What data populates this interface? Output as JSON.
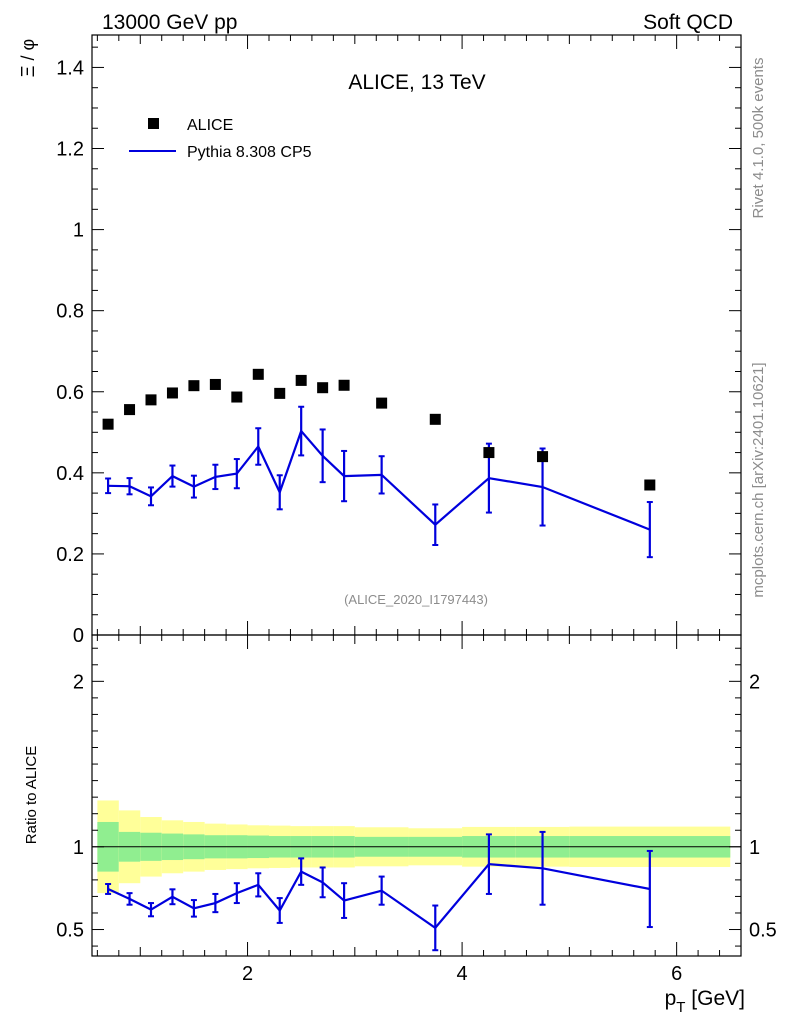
{
  "header": {
    "left": "13000 GeV pp",
    "right": "Soft QCD"
  },
  "side_text": {
    "rivet": "Rivet 4.1.0,  500k events",
    "mcplots": "mcplots.cern.ch [arXiv:2401.10621]"
  },
  "chart_data": [
    {
      "type": "scatter",
      "panel": "main",
      "title": "ALICE, 13 TeV",
      "analysis_id": "(ALICE_2020_I1797443)",
      "ylabel": "Ξ / φ",
      "xlabel": "",
      "xlim": [
        0.55,
        6.6
      ],
      "ylim": [
        0,
        1.48
      ],
      "yticks": [
        0,
        0.2,
        0.4,
        0.6,
        0.8,
        1,
        1.2,
        1.4
      ],
      "ytick_labels": [
        "0",
        "0.2",
        "0.4",
        "0.6",
        "0.8",
        "1",
        "1.2",
        "1.4"
      ],
      "legend": {
        "placement": "top-left",
        "entries": [
          "ALICE",
          "Pythia 8.308 CP5"
        ]
      },
      "series": [
        {
          "name": "ALICE",
          "style": "markers",
          "color": "#000000",
          "x": [
            0.7,
            0.9,
            1.1,
            1.3,
            1.5,
            1.7,
            1.9,
            2.1,
            2.3,
            2.5,
            2.7,
            2.9,
            3.25,
            3.75,
            4.25,
            4.75,
            5.75
          ],
          "y": [
            0.52,
            0.556,
            0.58,
            0.597,
            0.615,
            0.618,
            0.587,
            0.643,
            0.596,
            0.628,
            0.61,
            0.616,
            0.572,
            0.532,
            0.45,
            0.44,
            0.37
          ]
        },
        {
          "name": "Pythia 8.308 CP5",
          "style": "line",
          "color": "#0000dd",
          "x": [
            0.7,
            0.9,
            1.1,
            1.3,
            1.5,
            1.7,
            1.9,
            2.1,
            2.3,
            2.5,
            2.7,
            2.9,
            3.25,
            3.75,
            4.25,
            4.75,
            5.75
          ],
          "y": [
            0.368,
            0.367,
            0.342,
            0.392,
            0.366,
            0.39,
            0.398,
            0.465,
            0.352,
            0.503,
            0.442,
            0.392,
            0.395,
            0.272,
            0.387,
            0.365,
            0.26
          ],
          "err": [
            0.018,
            0.02,
            0.022,
            0.026,
            0.027,
            0.03,
            0.036,
            0.045,
            0.042,
            0.06,
            0.065,
            0.062,
            0.046,
            0.05,
            0.085,
            0.095,
            0.068
          ]
        }
      ]
    },
    {
      "type": "line",
      "panel": "ratio",
      "ylabel": "Ratio to ALICE",
      "xlabel": "p_T [GeV]",
      "xlabel_main": "p",
      "xlabel_sub": "T",
      "xlabel_unit": " [GeV]",
      "xlim": [
        0.55,
        6.6
      ],
      "ylim": [
        0.34,
        2.28
      ],
      "xticks": [
        2,
        4,
        6
      ],
      "xtick_labels": [
        "2",
        "4",
        "6"
      ],
      "yticks": [
        0.5,
        1,
        2
      ],
      "ytick_labels": [
        "0.5",
        "1",
        "2"
      ],
      "reference_line": 1,
      "bin_edges": [
        0.6,
        0.8,
        1.0,
        1.2,
        1.4,
        1.6,
        1.8,
        2.0,
        2.2,
        2.4,
        2.6,
        2.8,
        3.0,
        3.5,
        4.0,
        4.5,
        5.0,
        6.5
      ],
      "band_inner": [
        0.15,
        0.09,
        0.085,
        0.08,
        0.075,
        0.07,
        0.07,
        0.068,
        0.065,
        0.065,
        0.065,
        0.065,
        0.06,
        0.06,
        0.065,
        0.065,
        0.065
      ],
      "band_outer": [
        0.28,
        0.22,
        0.18,
        0.16,
        0.15,
        0.14,
        0.135,
        0.13,
        0.128,
        0.125,
        0.125,
        0.125,
        0.118,
        0.112,
        0.12,
        0.12,
        0.122
      ],
      "band_colors": {
        "inner": "#90ee90",
        "outer": "#ffff99"
      },
      "series": [
        {
          "name": "Pythia 8.308 CP5 / ALICE",
          "color": "#0000dd",
          "x": [
            0.7,
            0.9,
            1.1,
            1.3,
            1.5,
            1.7,
            1.9,
            2.1,
            2.3,
            2.5,
            2.7,
            2.9,
            3.25,
            3.75,
            4.25,
            4.75,
            5.75
          ],
          "y": [
            0.745,
            0.685,
            0.62,
            0.698,
            0.628,
            0.66,
            0.72,
            0.77,
            0.615,
            0.85,
            0.785,
            0.675,
            0.735,
            0.51,
            0.895,
            0.87,
            0.745
          ],
          "err": [
            0.03,
            0.035,
            0.04,
            0.045,
            0.05,
            0.055,
            0.06,
            0.07,
            0.075,
            0.08,
            0.09,
            0.105,
            0.085,
            0.135,
            0.18,
            0.22,
            0.23
          ]
        }
      ]
    }
  ]
}
